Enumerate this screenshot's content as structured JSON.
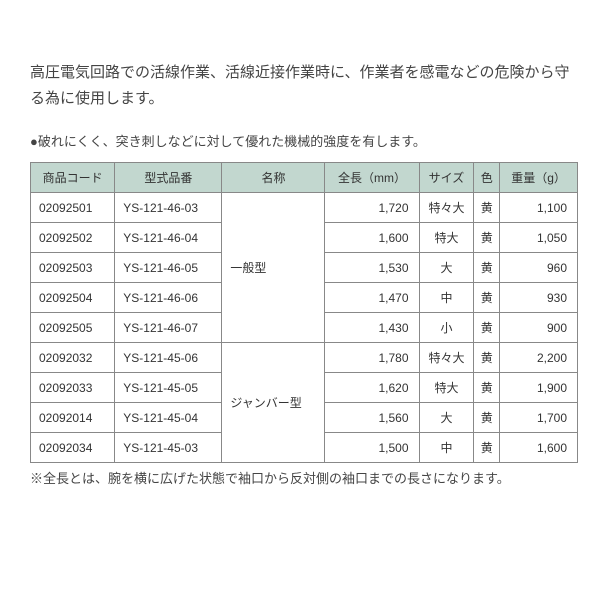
{
  "description": "高圧電気回路での活線作業、活線近接作業時に、作業者を感電などの危険から守る為に使用します。",
  "feature": "●破れにくく、突き刺しなどに対して優れた機械的強度を有します。",
  "table": {
    "headers": [
      "商品コード",
      "型式品番",
      "名称",
      "全長（mm）",
      "サイズ",
      "色",
      "重量（g）"
    ],
    "groups": [
      {
        "name": "一般型",
        "rows": [
          {
            "code": "02092501",
            "model": "YS-121-46-03",
            "length": "1,720",
            "size": "特々大",
            "color": "黄",
            "weight": "1,100"
          },
          {
            "code": "02092502",
            "model": "YS-121-46-04",
            "length": "1,600",
            "size": "特大",
            "color": "黄",
            "weight": "1,050"
          },
          {
            "code": "02092503",
            "model": "YS-121-46-05",
            "length": "1,530",
            "size": "大",
            "color": "黄",
            "weight": "960"
          },
          {
            "code": "02092504",
            "model": "YS-121-46-06",
            "length": "1,470",
            "size": "中",
            "color": "黄",
            "weight": "930"
          },
          {
            "code": "02092505",
            "model": "YS-121-46-07",
            "length": "1,430",
            "size": "小",
            "color": "黄",
            "weight": "900"
          }
        ]
      },
      {
        "name": "ジャンバー型",
        "rows": [
          {
            "code": "02092032",
            "model": "YS-121-45-06",
            "length": "1,780",
            "size": "特々大",
            "color": "黄",
            "weight": "2,200"
          },
          {
            "code": "02092033",
            "model": "YS-121-45-05",
            "length": "1,620",
            "size": "特大",
            "color": "黄",
            "weight": "1,900"
          },
          {
            "code": "02092014",
            "model": "YS-121-45-04",
            "length": "1,560",
            "size": "大",
            "color": "黄",
            "weight": "1,700"
          },
          {
            "code": "02092034",
            "model": "YS-121-45-03",
            "length": "1,500",
            "size": "中",
            "color": "黄",
            "weight": "1,600"
          }
        ]
      }
    ],
    "header_bg": "#c2d7cf",
    "border_color": "#888888",
    "col_align": [
      "left",
      "left",
      "left",
      "right",
      "center",
      "center",
      "right"
    ]
  },
  "note": "※全長とは、腕を横に広げた状態で袖口から反対側の袖口までの長さになります。"
}
